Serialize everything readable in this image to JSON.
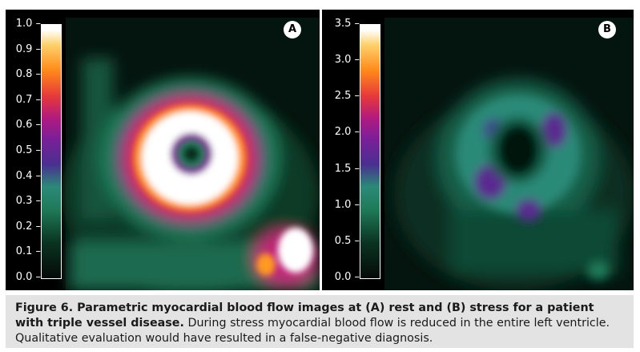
{
  "panels": [
    {
      "badge": "A",
      "ticks": [
        "1.0",
        "0.9",
        "0.8",
        "0.7",
        "0.6",
        "0.5",
        "0.4",
        "0.3",
        "0.2",
        "0.1",
        "0.0"
      ]
    },
    {
      "badge": "B",
      "ticks": [
        "3.5",
        "3.0",
        "2.5",
        "2.0",
        "1.5",
        "1.0",
        "0.5",
        "0.0"
      ]
    }
  ],
  "caption": {
    "label": "Figure 6.",
    "title": " Parametric myocardial blood flow images at (A) rest and (B) stress for a patient with triple vessel disease.",
    "text": " During stress myocardial blood flow is reduced in the entire left ventricle. Qualitative evaluation would have resulted in a false-negative diagnosis."
  },
  "colors": {
    "panel_bg": "#000000",
    "caption_bg": "#e3e3e3"
  }
}
